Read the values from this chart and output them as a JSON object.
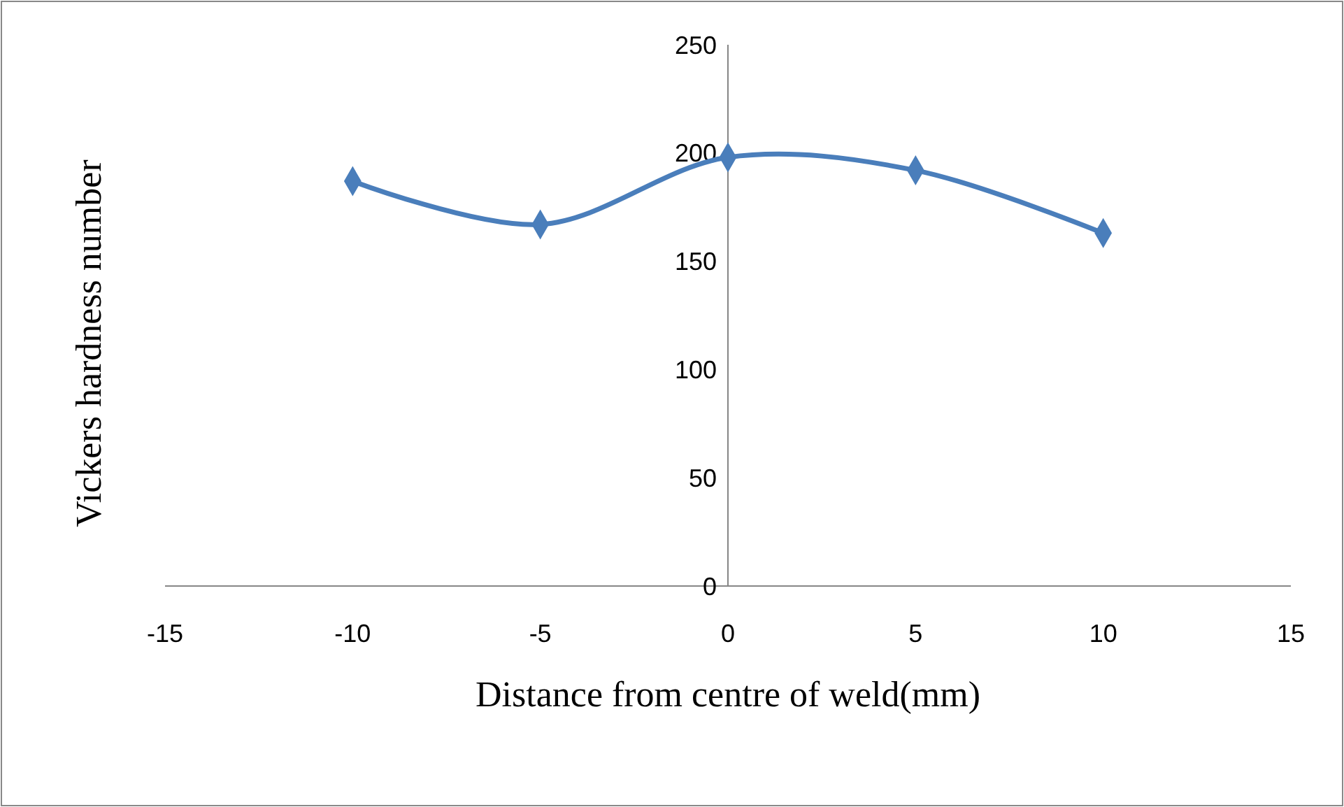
{
  "chart_data": {
    "type": "line",
    "xlabel": "Distance from centre of weld(mm)",
    "ylabel": "Vickers hardness number",
    "x": [
      -10,
      -5,
      0,
      5,
      10
    ],
    "series": [
      {
        "color": "#4a7ebb",
        "values": [
          187,
          167,
          198,
          192,
          163
        ]
      }
    ],
    "xlim": [
      -15,
      15
    ],
    "xticks": [
      -15,
      -10,
      -5,
      0,
      5,
      10,
      15
    ],
    "ylim": [
      0,
      250
    ],
    "yticks": [
      0,
      50,
      100,
      150,
      200,
      250
    ],
    "marker": "diamond",
    "line_style": "solid"
  }
}
